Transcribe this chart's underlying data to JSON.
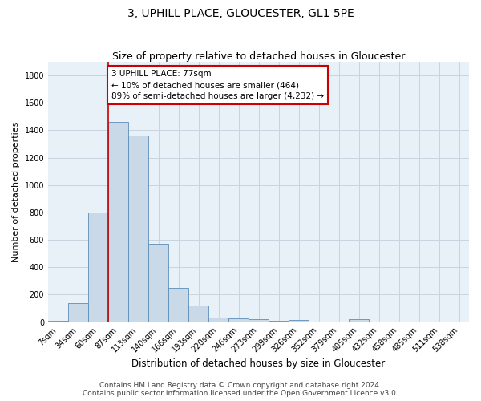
{
  "title": "3, UPHILL PLACE, GLOUCESTER, GL1 5PE",
  "subtitle": "Size of property relative to detached houses in Gloucester",
  "xlabel": "Distribution of detached houses by size in Gloucester",
  "ylabel": "Number of detached properties",
  "bin_labels": [
    "7sqm",
    "34sqm",
    "60sqm",
    "87sqm",
    "113sqm",
    "140sqm",
    "166sqm",
    "193sqm",
    "220sqm",
    "246sqm",
    "273sqm",
    "299sqm",
    "326sqm",
    "352sqm",
    "379sqm",
    "405sqm",
    "432sqm",
    "458sqm",
    "485sqm",
    "511sqm",
    "538sqm"
  ],
  "bar_values": [
    10,
    140,
    800,
    1460,
    1360,
    570,
    250,
    120,
    35,
    25,
    20,
    10,
    15,
    0,
    0,
    20,
    0,
    0,
    0,
    0,
    0
  ],
  "bar_color": "#c9d9e8",
  "bar_edge_color": "#5b8db8",
  "vline_bin_index": 3,
  "vline_color": "#cc0000",
  "annotation_text": "3 UPHILL PLACE: 77sqm\n← 10% of detached houses are smaller (464)\n89% of semi-detached houses are larger (4,232) →",
  "annotation_box_color": "#ffffff",
  "annotation_box_edge_color": "#cc0000",
  "ylim": [
    0,
    1900
  ],
  "yticks": [
    0,
    200,
    400,
    600,
    800,
    1000,
    1200,
    1400,
    1600,
    1800
  ],
  "grid_color": "#c8d4e0",
  "bg_color": "#e8f0f8",
  "footer_line1": "Contains HM Land Registry data © Crown copyright and database right 2024.",
  "footer_line2": "Contains public sector information licensed under the Open Government Licence v3.0.",
  "title_fontsize": 10,
  "subtitle_fontsize": 9,
  "xlabel_fontsize": 8.5,
  "ylabel_fontsize": 8,
  "tick_fontsize": 7,
  "footer_fontsize": 6.5,
  "annotation_fontsize": 7.5
}
